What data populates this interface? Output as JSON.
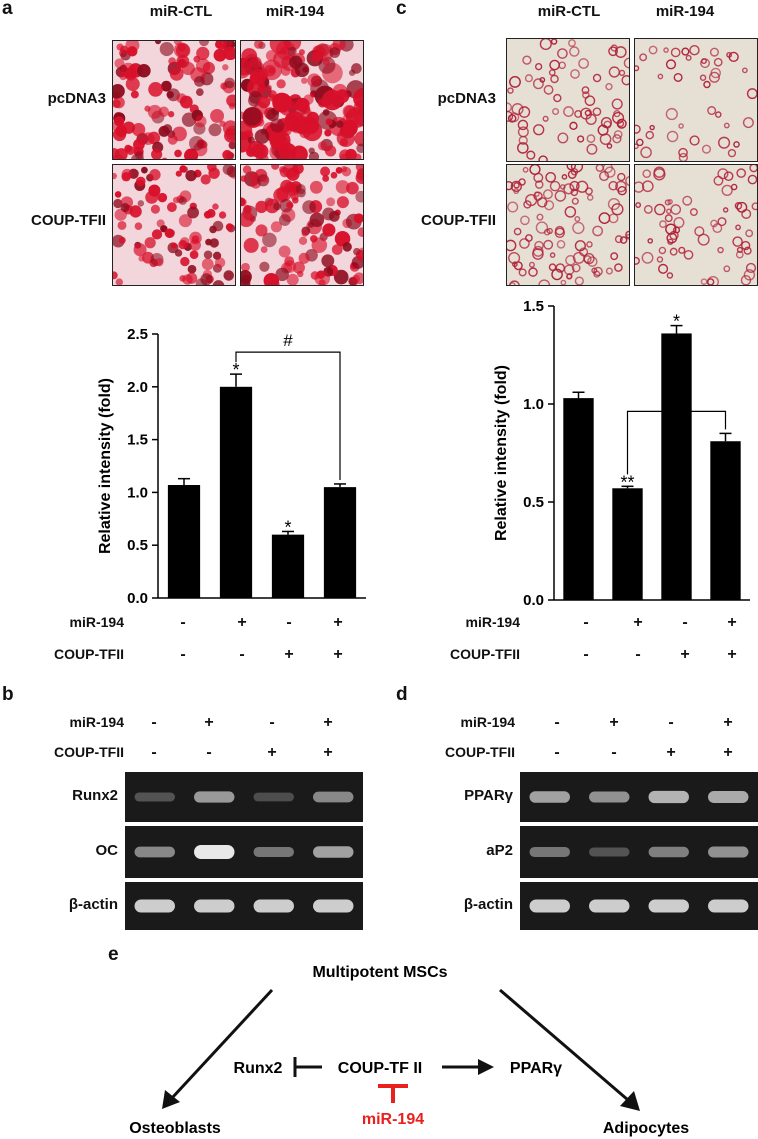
{
  "panel_a": {
    "letter": "a",
    "columns": [
      "miR-CTL",
      "miR-194"
    ],
    "rows": [
      "pcDNA3",
      "COUP-TFII"
    ]
  },
  "panel_c": {
    "letter": "c",
    "columns": [
      "miR-CTL",
      "miR-194"
    ],
    "rows": [
      "pcDNA3",
      "COUP-TFII"
    ]
  },
  "conditions": {
    "mir_label": "miR-194",
    "coup_label": "COUP-TFII",
    "mir_signs": [
      "-",
      "+",
      "-",
      "+"
    ],
    "coup_signs": [
      "-",
      "-",
      "+",
      "+"
    ]
  },
  "chart_data": [
    {
      "type": "bar",
      "panel": "a",
      "ylabel": "Relative intensity (fold)",
      "ylim": [
        0,
        2.5
      ],
      "yticks": [
        "0.0",
        "0.5",
        "1.0",
        "1.5",
        "2.0",
        "2.5"
      ],
      "values": [
        1.07,
        2.0,
        0.6,
        1.05
      ],
      "errors": [
        0.06,
        0.12,
        0.03,
        0.03
      ],
      "stars": [
        "",
        "*",
        "*",
        ""
      ],
      "bracket": {
        "from": 1,
        "to": 3,
        "label": "#"
      },
      "bar_color": "#000000"
    },
    {
      "type": "bar",
      "panel": "c",
      "ylabel": "Relative intensity (fold)",
      "ylim": [
        0,
        1.5
      ],
      "yticks": [
        "0.0",
        "0.5",
        "1.0",
        "1.5"
      ],
      "values": [
        1.03,
        0.57,
        1.36,
        0.81
      ],
      "errors": [
        0.03,
        0.01,
        0.04,
        0.04
      ],
      "stars": [
        "",
        "**",
        "*",
        ""
      ],
      "bracket": {
        "from": 1,
        "to": 3,
        "label": "#"
      },
      "bar_color": "#000000"
    }
  ],
  "panel_b": {
    "letter": "b",
    "genes": [
      "Runx2",
      "OC",
      "β-actin"
    ],
    "band_intensity": [
      [
        0.15,
        0.55,
        0.12,
        0.45
      ],
      [
        0.45,
        1.0,
        0.35,
        0.6
      ],
      [
        0.85,
        0.85,
        0.85,
        0.85
      ]
    ]
  },
  "panel_d": {
    "letter": "d",
    "genes": [
      "PPARγ",
      "aP2",
      "β-actin"
    ],
    "band_intensity": [
      [
        0.6,
        0.5,
        0.7,
        0.65
      ],
      [
        0.35,
        0.15,
        0.4,
        0.5
      ],
      [
        0.85,
        0.85,
        0.85,
        0.85
      ]
    ]
  },
  "panel_e": {
    "letter": "e",
    "top": "Multipotent MSCs",
    "center": "COUP-TF II",
    "left_target": "Runx2",
    "right_target": "PPARγ",
    "inhibitor": "miR-194",
    "left_outcome": "Osteoblasts",
    "right_outcome": "Adipocytes",
    "inhibitor_color": "#e8201e"
  },
  "colors": {
    "stain_osteo": "#d8102a",
    "stain_adipo": "#b02038",
    "gel_bg": "#1a1a1a",
    "band": "#e8e8e8"
  }
}
